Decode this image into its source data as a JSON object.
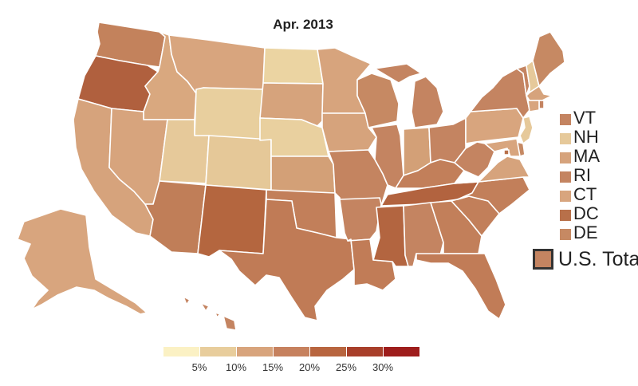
{
  "title": "Apr. 2013",
  "map": {
    "states": [
      {
        "id": "WA",
        "fill": "#c3825c"
      },
      {
        "id": "OR",
        "fill": "#b0603e"
      },
      {
        "id": "CA",
        "fill": "#d6a37c"
      },
      {
        "id": "ID",
        "fill": "#d9a87f"
      },
      {
        "id": "NV",
        "fill": "#d7a47d"
      },
      {
        "id": "MT",
        "fill": "#d8a57e"
      },
      {
        "id": "WY",
        "fill": "#e8cf9e"
      },
      {
        "id": "UT",
        "fill": "#e6c99a"
      },
      {
        "id": "CO",
        "fill": "#e5c898"
      },
      {
        "id": "AZ",
        "fill": "#c07e58"
      },
      {
        "id": "NM",
        "fill": "#b4663f"
      },
      {
        "id": "ND",
        "fill": "#ebd4a2"
      },
      {
        "id": "SD",
        "fill": "#d6a37c"
      },
      {
        "id": "NE",
        "fill": "#e9d09f"
      },
      {
        "id": "KS",
        "fill": "#d3a077"
      },
      {
        "id": "OK",
        "fill": "#c27f5a"
      },
      {
        "id": "TX",
        "fill": "#c07b56"
      },
      {
        "id": "MN",
        "fill": "#d7a47d"
      },
      {
        "id": "IA",
        "fill": "#d6a37c"
      },
      {
        "id": "MO",
        "fill": "#c48460"
      },
      {
        "id": "AR",
        "fill": "#c48461"
      },
      {
        "id": "LA",
        "fill": "#c17c57"
      },
      {
        "id": "WI",
        "fill": "#c68963"
      },
      {
        "id": "IL",
        "fill": "#c48461"
      },
      {
        "id": "MI",
        "fill": "#c48461"
      },
      {
        "id": "IN",
        "fill": "#d3a077"
      },
      {
        "id": "OH",
        "fill": "#c48461"
      },
      {
        "id": "KY",
        "fill": "#c27f5a"
      },
      {
        "id": "TN",
        "fill": "#b2633f"
      },
      {
        "id": "MS",
        "fill": "#b36540"
      },
      {
        "id": "AL",
        "fill": "#c48461"
      },
      {
        "id": "GA",
        "fill": "#c27f5a"
      },
      {
        "id": "FL",
        "fill": "#c17c57"
      },
      {
        "id": "SC",
        "fill": "#c27f5a"
      },
      {
        "id": "NC",
        "fill": "#c27f5a"
      },
      {
        "id": "VA",
        "fill": "#d6a37c"
      },
      {
        "id": "WV",
        "fill": "#c48461"
      },
      {
        "id": "PA",
        "fill": "#d8a57e"
      },
      {
        "id": "NY",
        "fill": "#c48461"
      },
      {
        "id": "VT",
        "fill": "#c48461"
      },
      {
        "id": "NH",
        "fill": "#e6c99a"
      },
      {
        "id": "ME",
        "fill": "#c68963"
      },
      {
        "id": "MA",
        "fill": "#d6a37c"
      },
      {
        "id": "RI",
        "fill": "#c48461"
      },
      {
        "id": "CT",
        "fill": "#d8a57e"
      },
      {
        "id": "NJ",
        "fill": "#e6c99a"
      },
      {
        "id": "DE",
        "fill": "#c68963"
      },
      {
        "id": "MD",
        "fill": "#d8a57e"
      },
      {
        "id": "DC",
        "fill": "#b8704a"
      },
      {
        "id": "AK",
        "fill": "#d8a57e"
      },
      {
        "id": "HI",
        "fill": "#c48461"
      }
    ]
  },
  "small_states_legend": [
    {
      "label": "VT",
      "color": "#c48461"
    },
    {
      "label": "NH",
      "color": "#e6c99a"
    },
    {
      "label": "MA",
      "color": "#d6a37c"
    },
    {
      "label": "RI",
      "color": "#c48461"
    },
    {
      "label": "CT",
      "color": "#d8a57e"
    },
    {
      "label": "DC",
      "color": "#b8704a"
    },
    {
      "label": "DE",
      "color": "#c68963"
    }
  ],
  "us_total": {
    "label": "U.S. Total",
    "color": "#c48461"
  },
  "color_scale": {
    "colors": [
      "#fbf1c4",
      "#e8cd9c",
      "#d8a47c",
      "#c6815e",
      "#b8653f",
      "#a83f2a",
      "#9e1d1c"
    ],
    "ticks": [
      "5%",
      "10%",
      "15%",
      "20%",
      "25%",
      "30%"
    ]
  }
}
